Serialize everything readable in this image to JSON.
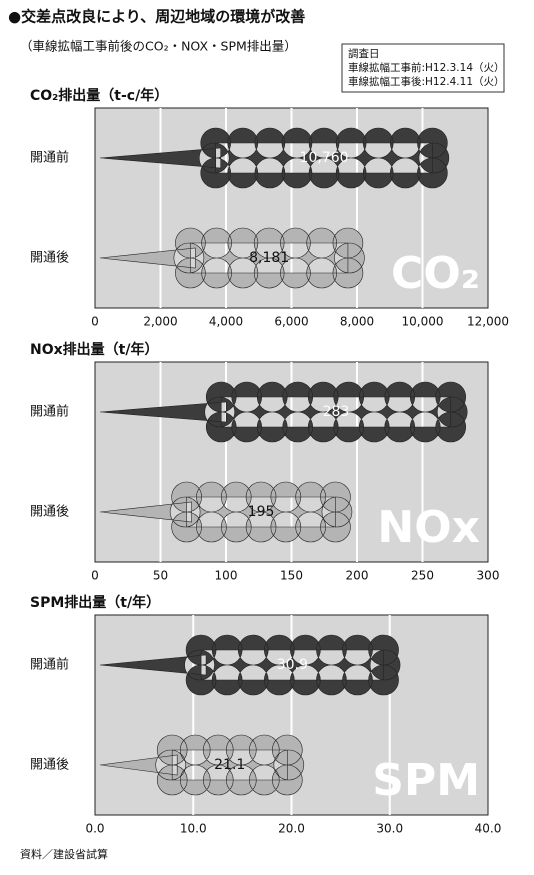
{
  "header": {
    "title": "●交差点改良により、周辺地域の環境が改善",
    "subtitle": "（車線拡幅工事前後のCO₂・NOX・SPM排出量）"
  },
  "survey": {
    "title": "調査日",
    "lines": [
      "車線拡幅工事前:H12.3.14（火）",
      "車線拡幅工事後:H12.4.11（火）"
    ]
  },
  "source": "資料／建設省試算",
  "chart_data": [
    {
      "type": "bar",
      "title": "CO₂排出量（t-c/年）",
      "watermark": "CO₂",
      "categories": [
        "開通前",
        "開通後"
      ],
      "values": [
        10760,
        8181
      ],
      "value_labels": [
        "10,760",
        "8,181"
      ],
      "colors": [
        "#3c3c3c",
        "#b4b4b4"
      ],
      "xlim": [
        0,
        12000
      ],
      "xticks": [
        0,
        {
          "value": 2000,
          "label": "2,000"
        },
        {
          "value": 4000,
          "label": "4,000"
        },
        {
          "value": 6000,
          "label": "6,000"
        },
        {
          "value": 8000,
          "label": "8,000"
        },
        {
          "value": 10000,
          "label": "10,000"
        },
        {
          "value": 12000,
          "label": "12,000"
        }
      ],
      "grid": true
    },
    {
      "type": "bar",
      "title": "NOx排出量（t/年）",
      "watermark": "NOx",
      "categories": [
        "開通前",
        "開通後"
      ],
      "values": [
        283,
        195
      ],
      "colors": [
        "#3c3c3c",
        "#b4b4b4"
      ],
      "xlim": [
        0,
        300
      ],
      "xticks": [
        0,
        50,
        100,
        150,
        200,
        250,
        300
      ],
      "grid": true
    },
    {
      "type": "bar",
      "title": "SPM排出量（t/年）",
      "watermark": "SPM",
      "categories": [
        "開通前",
        "開通後"
      ],
      "values": [
        30.9,
        21.1
      ],
      "colors": [
        "#3c3c3c",
        "#b4b4b4"
      ],
      "xlim": [
        0,
        40
      ],
      "xticks": [
        {
          "value": 0,
          "label": "0.0"
        },
        {
          "value": 10,
          "label": "10.0"
        },
        {
          "value": 20,
          "label": "20.0"
        },
        {
          "value": 30,
          "label": "30.0"
        },
        {
          "value": 40,
          "label": "40.0"
        }
      ],
      "grid": true
    }
  ]
}
